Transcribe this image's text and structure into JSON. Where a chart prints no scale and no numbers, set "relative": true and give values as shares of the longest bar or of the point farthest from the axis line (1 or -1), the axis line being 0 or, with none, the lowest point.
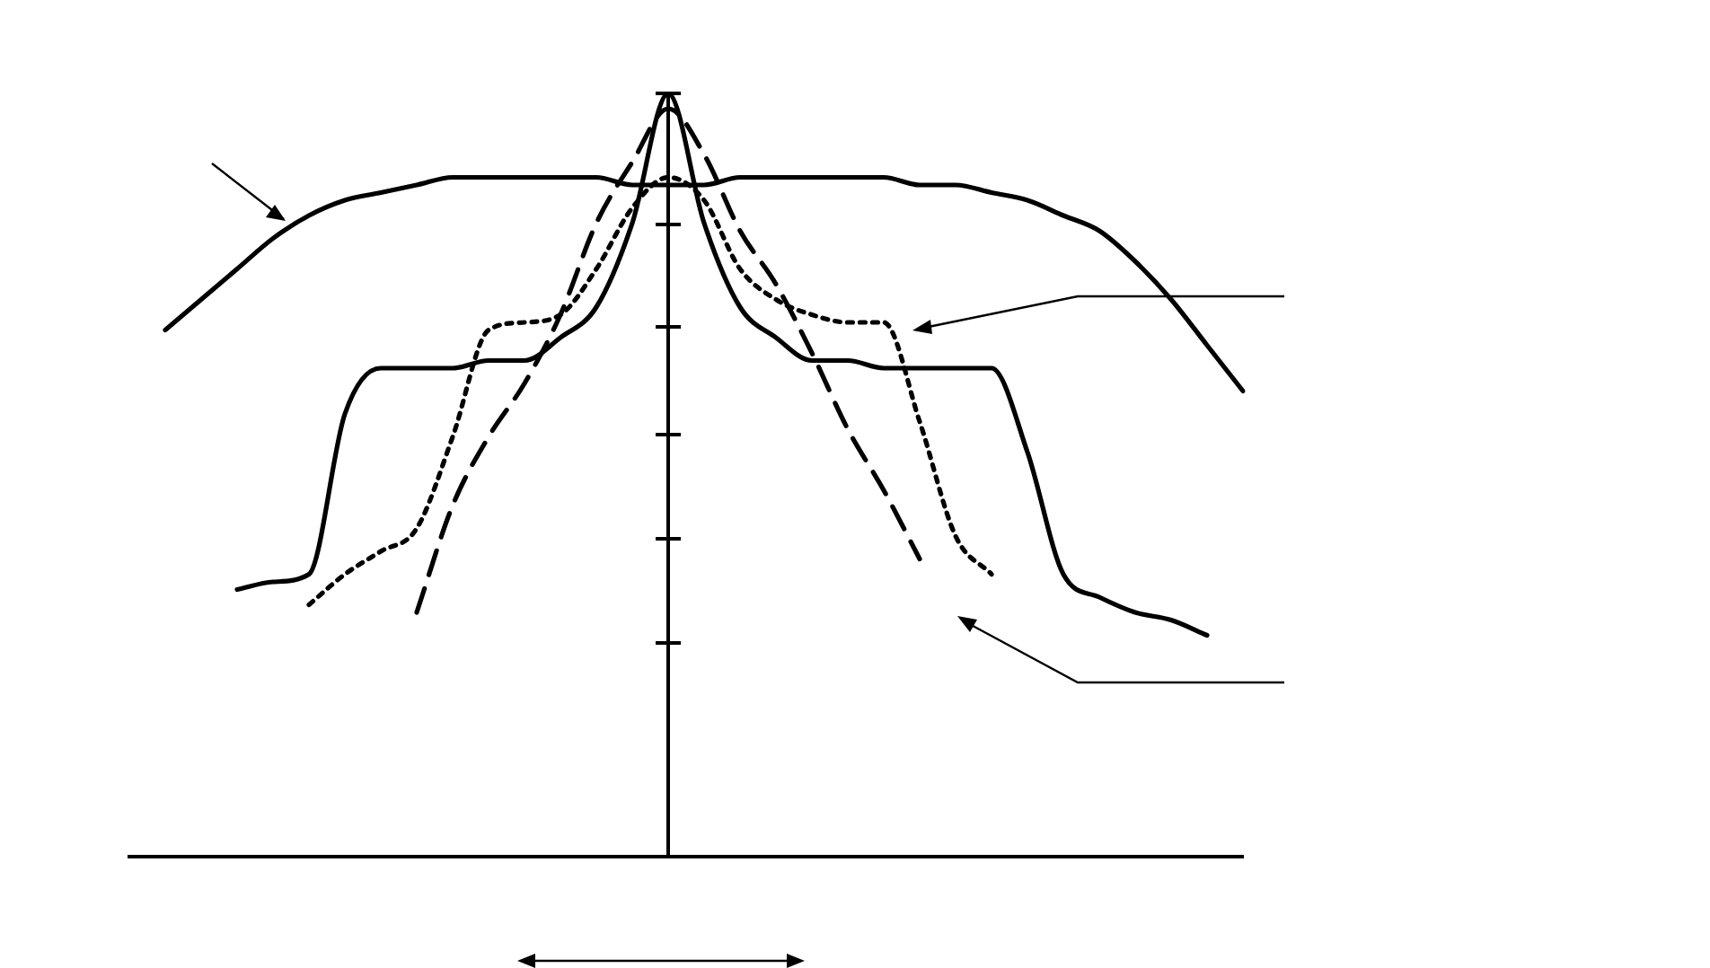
{
  "chart_data": {
    "type": "line",
    "relative": true,
    "tick_labels": false,
    "marker": "none",
    "categories": [
      null,
      null,
      null,
      null,
      null,
      null,
      null,
      null,
      null,
      null,
      null,
      null,
      null,
      null,
      null,
      null,
      null,
      null,
      null,
      null,
      null,
      null,
      null,
      null,
      null,
      null,
      null,
      null,
      null,
      null,
      null,
      null
    ],
    "series": [
      {
        "color": "#000000",
        "line_style": "solid",
        "values": [
          null,
          0.69,
          0.73,
          0.77,
          0.81,
          0.84,
          0.86,
          0.87,
          0.88,
          0.89,
          0.89,
          0.89,
          0.89,
          0.89,
          0.88,
          0.88,
          0.88,
          0.89,
          0.89,
          0.89,
          0.89,
          0.89,
          0.88,
          0.88,
          0.87,
          0.86,
          0.84,
          0.82,
          0.78,
          0.73,
          0.67,
          0.61
        ]
      },
      {
        "color": "#000000",
        "line_style": "solid",
        "values": [
          null,
          null,
          null,
          0.35,
          0.36,
          0.37,
          0.58,
          0.64,
          0.64,
          0.64,
          0.65,
          0.65,
          0.68,
          0.72,
          0.83,
          1.0,
          0.83,
          0.72,
          0.68,
          0.65,
          0.65,
          0.64,
          0.64,
          0.64,
          0.64,
          0.53,
          0.37,
          0.34,
          0.32,
          0.31,
          0.29,
          null
        ]
      },
      {
        "color": "#000000",
        "line_style": "dotted",
        "values": [
          null,
          null,
          null,
          null,
          null,
          0.33,
          0.37,
          0.4,
          0.43,
          0.55,
          0.69,
          0.7,
          0.71,
          0.77,
          0.85,
          0.89,
          0.86,
          0.77,
          0.73,
          0.71,
          0.7,
          0.7,
          0.57,
          0.42,
          0.37,
          null,
          null,
          null,
          null,
          null,
          null,
          null
        ]
      },
      {
        "color": "#000000",
        "line_style": "dashed",
        "values": [
          null,
          null,
          null,
          null,
          null,
          null,
          null,
          null,
          0.32,
          0.46,
          0.55,
          0.62,
          0.71,
          0.83,
          0.91,
          0.98,
          0.92,
          0.82,
          0.75,
          0.66,
          0.56,
          0.48,
          0.39,
          null,
          null,
          null,
          null,
          null,
          null,
          null,
          null,
          null
        ]
      }
    ]
  }
}
